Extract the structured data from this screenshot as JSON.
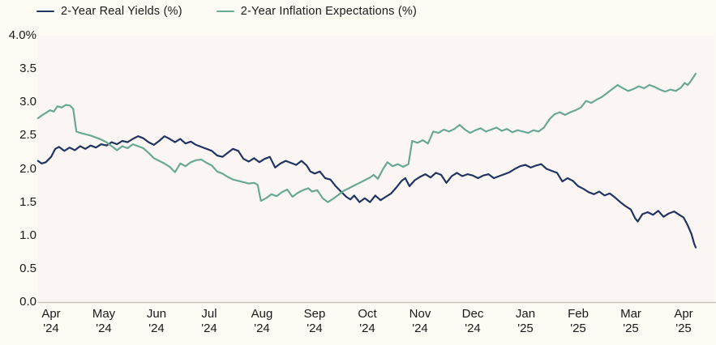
{
  "legend": {
    "items": [
      {
        "label": "2-Year Real Yields (%)"
      },
      {
        "label": "2-Year Inflation Expectations (%)"
      }
    ]
  },
  "colors": {
    "real_yields": "#1f3460",
    "inflation_expectations": "#68a894",
    "page_bg": "#fdf9f3",
    "plot_bg": "#fbf6f3",
    "axis_line": "#c6c3c0",
    "text": "#1a1a1a"
  },
  "chart_data": {
    "type": "line",
    "title": "",
    "xlabel": "",
    "ylabel": "",
    "grid": false,
    "legend_position": "top-left",
    "y_axis": {
      "ylim": [
        0.0,
        4.0
      ],
      "tick_labels": [
        "4.0%",
        "3.5",
        "3.0",
        "2.5",
        "2.0",
        "1.5",
        "1.0",
        "0.5",
        "0.0"
      ],
      "tick_values": [
        4.0,
        3.5,
        3.0,
        2.5,
        2.0,
        1.5,
        1.0,
        0.5,
        0.0
      ]
    },
    "x_axis": {
      "unit": "months since Apr 2024",
      "ticks": [
        {
          "month": "Apr",
          "year": "'24",
          "offset": 0
        },
        {
          "month": "May",
          "year": "'24",
          "offset": 1
        },
        {
          "month": "Jun",
          "year": "'24",
          "offset": 2
        },
        {
          "month": "Jul",
          "year": "'24",
          "offset": 3
        },
        {
          "month": "Aug",
          "year": "'24",
          "offset": 4
        },
        {
          "month": "Sep",
          "year": "'24",
          "offset": 5
        },
        {
          "month": "Oct",
          "year": "'24",
          "offset": 6
        },
        {
          "month": "Nov",
          "year": "'24",
          "offset": 7
        },
        {
          "month": "Dec",
          "year": "'24",
          "offset": 8
        },
        {
          "month": "Jan",
          "year": "'25",
          "offset": 9
        },
        {
          "month": "Feb",
          "year": "'25",
          "offset": 10
        },
        {
          "month": "Mar",
          "year": "'25",
          "offset": 11
        },
        {
          "month": "Apr",
          "year": "'25",
          "offset": 12
        }
      ]
    },
    "series": [
      {
        "name": "2-Year Real Yields (%)",
        "color": "#1f3460",
        "points": [
          [
            -0.25,
            2.12
          ],
          [
            -0.18,
            2.08
          ],
          [
            -0.1,
            2.1
          ],
          [
            0.0,
            2.18
          ],
          [
            0.08,
            2.3
          ],
          [
            0.15,
            2.33
          ],
          [
            0.25,
            2.27
          ],
          [
            0.35,
            2.32
          ],
          [
            0.45,
            2.28
          ],
          [
            0.55,
            2.34
          ],
          [
            0.65,
            2.3
          ],
          [
            0.75,
            2.35
          ],
          [
            0.85,
            2.32
          ],
          [
            0.95,
            2.37
          ],
          [
            1.05,
            2.35
          ],
          [
            1.15,
            2.4
          ],
          [
            1.25,
            2.37
          ],
          [
            1.35,
            2.42
          ],
          [
            1.45,
            2.4
          ],
          [
            1.55,
            2.45
          ],
          [
            1.65,
            2.49
          ],
          [
            1.75,
            2.46
          ],
          [
            1.85,
            2.4
          ],
          [
            1.95,
            2.36
          ],
          [
            2.05,
            2.42
          ],
          [
            2.15,
            2.49
          ],
          [
            2.25,
            2.45
          ],
          [
            2.35,
            2.4
          ],
          [
            2.45,
            2.45
          ],
          [
            2.55,
            2.38
          ],
          [
            2.65,
            2.41
          ],
          [
            2.75,
            2.36
          ],
          [
            2.85,
            2.33
          ],
          [
            2.95,
            2.3
          ],
          [
            3.05,
            2.27
          ],
          [
            3.15,
            2.2
          ],
          [
            3.25,
            2.18
          ],
          [
            3.35,
            2.24
          ],
          [
            3.45,
            2.3
          ],
          [
            3.55,
            2.27
          ],
          [
            3.65,
            2.15
          ],
          [
            3.75,
            2.11
          ],
          [
            3.85,
            2.16
          ],
          [
            3.95,
            2.1
          ],
          [
            4.05,
            2.15
          ],
          [
            4.15,
            2.18
          ],
          [
            4.25,
            2.02
          ],
          [
            4.35,
            2.08
          ],
          [
            4.45,
            2.12
          ],
          [
            4.55,
            2.09
          ],
          [
            4.65,
            2.06
          ],
          [
            4.75,
            2.12
          ],
          [
            4.85,
            2.05
          ],
          [
            4.92,
            1.96
          ],
          [
            5.0,
            1.93
          ],
          [
            5.1,
            1.96
          ],
          [
            5.2,
            1.86
          ],
          [
            5.3,
            1.84
          ],
          [
            5.4,
            1.74
          ],
          [
            5.5,
            1.66
          ],
          [
            5.6,
            1.58
          ],
          [
            5.68,
            1.54
          ],
          [
            5.75,
            1.6
          ],
          [
            5.85,
            1.5
          ],
          [
            5.95,
            1.56
          ],
          [
            6.05,
            1.5
          ],
          [
            6.15,
            1.6
          ],
          [
            6.25,
            1.53
          ],
          [
            6.35,
            1.58
          ],
          [
            6.45,
            1.63
          ],
          [
            6.55,
            1.72
          ],
          [
            6.65,
            1.82
          ],
          [
            6.72,
            1.86
          ],
          [
            6.8,
            1.74
          ],
          [
            6.9,
            1.83
          ],
          [
            7.0,
            1.88
          ],
          [
            7.1,
            1.92
          ],
          [
            7.2,
            1.87
          ],
          [
            7.3,
            1.94
          ],
          [
            7.4,
            1.91
          ],
          [
            7.5,
            1.79
          ],
          [
            7.6,
            1.89
          ],
          [
            7.7,
            1.94
          ],
          [
            7.8,
            1.89
          ],
          [
            7.9,
            1.92
          ],
          [
            8.0,
            1.9
          ],
          [
            8.1,
            1.86
          ],
          [
            8.2,
            1.9
          ],
          [
            8.3,
            1.92
          ],
          [
            8.4,
            1.86
          ],
          [
            8.5,
            1.89
          ],
          [
            8.6,
            1.92
          ],
          [
            8.7,
            1.95
          ],
          [
            8.8,
            2.0
          ],
          [
            8.9,
            2.04
          ],
          [
            9.0,
            2.06
          ],
          [
            9.1,
            2.02
          ],
          [
            9.2,
            2.05
          ],
          [
            9.3,
            2.07
          ],
          [
            9.4,
            2.0
          ],
          [
            9.5,
            1.97
          ],
          [
            9.6,
            1.94
          ],
          [
            9.7,
            1.81
          ],
          [
            9.8,
            1.86
          ],
          [
            9.9,
            1.82
          ],
          [
            10.0,
            1.74
          ],
          [
            10.1,
            1.7
          ],
          [
            10.2,
            1.65
          ],
          [
            10.3,
            1.62
          ],
          [
            10.4,
            1.66
          ],
          [
            10.5,
            1.6
          ],
          [
            10.6,
            1.63
          ],
          [
            10.7,
            1.57
          ],
          [
            10.8,
            1.5
          ],
          [
            10.9,
            1.44
          ],
          [
            11.0,
            1.39
          ],
          [
            11.08,
            1.26
          ],
          [
            11.13,
            1.21
          ],
          [
            11.22,
            1.32
          ],
          [
            11.32,
            1.35
          ],
          [
            11.42,
            1.31
          ],
          [
            11.52,
            1.37
          ],
          [
            11.62,
            1.28
          ],
          [
            11.72,
            1.33
          ],
          [
            11.82,
            1.36
          ],
          [
            11.92,
            1.31
          ],
          [
            12.0,
            1.27
          ],
          [
            12.08,
            1.15
          ],
          [
            12.15,
            1.02
          ],
          [
            12.2,
            0.88
          ],
          [
            12.23,
            0.82
          ]
        ]
      },
      {
        "name": "2-Year Inflation Expectations (%)",
        "color": "#68a894",
        "points": [
          [
            -0.25,
            2.76
          ],
          [
            -0.18,
            2.8
          ],
          [
            -0.1,
            2.84
          ],
          [
            -0.02,
            2.88
          ],
          [
            0.05,
            2.86
          ],
          [
            0.12,
            2.94
          ],
          [
            0.2,
            2.92
          ],
          [
            0.28,
            2.96
          ],
          [
            0.36,
            2.95
          ],
          [
            0.42,
            2.9
          ],
          [
            0.48,
            2.56
          ],
          [
            0.55,
            2.54
          ],
          [
            0.65,
            2.52
          ],
          [
            0.75,
            2.5
          ],
          [
            0.85,
            2.47
          ],
          [
            0.95,
            2.44
          ],
          [
            1.05,
            2.4
          ],
          [
            1.15,
            2.34
          ],
          [
            1.25,
            2.28
          ],
          [
            1.35,
            2.34
          ],
          [
            1.45,
            2.31
          ],
          [
            1.55,
            2.37
          ],
          [
            1.65,
            2.34
          ],
          [
            1.75,
            2.31
          ],
          [
            1.85,
            2.24
          ],
          [
            1.95,
            2.16
          ],
          [
            2.05,
            2.12
          ],
          [
            2.15,
            2.08
          ],
          [
            2.25,
            2.03
          ],
          [
            2.35,
            1.95
          ],
          [
            2.45,
            2.08
          ],
          [
            2.55,
            2.04
          ],
          [
            2.65,
            2.1
          ],
          [
            2.75,
            2.13
          ],
          [
            2.85,
            2.14
          ],
          [
            2.95,
            2.09
          ],
          [
            3.05,
            2.05
          ],
          [
            3.15,
            1.96
          ],
          [
            3.25,
            1.93
          ],
          [
            3.35,
            1.88
          ],
          [
            3.45,
            1.84
          ],
          [
            3.55,
            1.82
          ],
          [
            3.65,
            1.8
          ],
          [
            3.75,
            1.78
          ],
          [
            3.85,
            1.79
          ],
          [
            3.92,
            1.76
          ],
          [
            3.98,
            1.52
          ],
          [
            4.08,
            1.56
          ],
          [
            4.18,
            1.62
          ],
          [
            4.28,
            1.59
          ],
          [
            4.38,
            1.65
          ],
          [
            4.48,
            1.69
          ],
          [
            4.58,
            1.58
          ],
          [
            4.68,
            1.64
          ],
          [
            4.78,
            1.68
          ],
          [
            4.88,
            1.71
          ],
          [
            4.95,
            1.66
          ],
          [
            5.05,
            1.68
          ],
          [
            5.15,
            1.56
          ],
          [
            5.25,
            1.5
          ],
          [
            5.35,
            1.55
          ],
          [
            5.45,
            1.61
          ],
          [
            5.55,
            1.67
          ],
          [
            5.65,
            1.71
          ],
          [
            5.75,
            1.75
          ],
          [
            5.85,
            1.79
          ],
          [
            5.95,
            1.83
          ],
          [
            6.05,
            1.87
          ],
          [
            6.12,
            1.91
          ],
          [
            6.2,
            1.85
          ],
          [
            6.3,
            2.0
          ],
          [
            6.38,
            2.1
          ],
          [
            6.48,
            2.04
          ],
          [
            6.58,
            2.07
          ],
          [
            6.68,
            2.03
          ],
          [
            6.78,
            2.07
          ],
          [
            6.85,
            2.42
          ],
          [
            6.95,
            2.39
          ],
          [
            7.05,
            2.43
          ],
          [
            7.15,
            2.38
          ],
          [
            7.25,
            2.56
          ],
          [
            7.35,
            2.54
          ],
          [
            7.45,
            2.59
          ],
          [
            7.55,
            2.56
          ],
          [
            7.65,
            2.6
          ],
          [
            7.75,
            2.66
          ],
          [
            7.85,
            2.59
          ],
          [
            7.95,
            2.54
          ],
          [
            8.05,
            2.58
          ],
          [
            8.15,
            2.61
          ],
          [
            8.25,
            2.56
          ],
          [
            8.35,
            2.59
          ],
          [
            8.45,
            2.62
          ],
          [
            8.55,
            2.57
          ],
          [
            8.65,
            2.6
          ],
          [
            8.75,
            2.55
          ],
          [
            8.85,
            2.58
          ],
          [
            8.95,
            2.56
          ],
          [
            9.05,
            2.54
          ],
          [
            9.15,
            2.58
          ],
          [
            9.25,
            2.56
          ],
          [
            9.35,
            2.62
          ],
          [
            9.45,
            2.74
          ],
          [
            9.55,
            2.82
          ],
          [
            9.65,
            2.85
          ],
          [
            9.75,
            2.81
          ],
          [
            9.85,
            2.85
          ],
          [
            9.95,
            2.88
          ],
          [
            10.05,
            2.92
          ],
          [
            10.15,
            3.02
          ],
          [
            10.25,
            2.99
          ],
          [
            10.35,
            3.04
          ],
          [
            10.45,
            3.08
          ],
          [
            10.55,
            3.14
          ],
          [
            10.65,
            3.2
          ],
          [
            10.75,
            3.26
          ],
          [
            10.85,
            3.21
          ],
          [
            10.95,
            3.17
          ],
          [
            11.05,
            3.2
          ],
          [
            11.15,
            3.24
          ],
          [
            11.25,
            3.21
          ],
          [
            11.35,
            3.26
          ],
          [
            11.45,
            3.23
          ],
          [
            11.55,
            3.19
          ],
          [
            11.65,
            3.16
          ],
          [
            11.75,
            3.19
          ],
          [
            11.85,
            3.17
          ],
          [
            11.95,
            3.22
          ],
          [
            12.02,
            3.29
          ],
          [
            12.08,
            3.26
          ],
          [
            12.14,
            3.32
          ],
          [
            12.19,
            3.38
          ],
          [
            12.23,
            3.43
          ]
        ]
      }
    ]
  }
}
